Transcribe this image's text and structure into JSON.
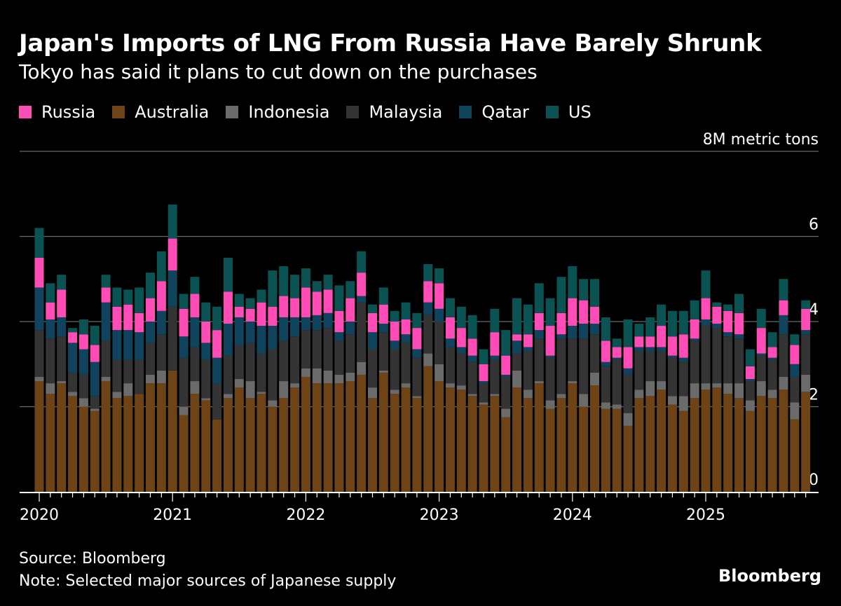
{
  "title": "Japan's Imports of LNG From Russia Have Barely Shrunk",
  "subtitle": "Tokyo has said it plans to cut down on the purchases",
  "legend": [
    {
      "name": "Russia",
      "color": "#ff4db8"
    },
    {
      "name": "Australia",
      "color": "#6e4416"
    },
    {
      "name": "Indonesia",
      "color": "#6b6b6b"
    },
    {
      "name": "Malaysia",
      "color": "#343434"
    },
    {
      "name": "Qatar",
      "color": "#10435c"
    },
    {
      "name": "US",
      "color": "#0b5252"
    }
  ],
  "footer": {
    "source": "Source: Bloomberg",
    "note": "Note: Selected major sources of Japanese supply",
    "brand": "Bloomberg"
  },
  "chart_data": {
    "type": "bar",
    "stacked": true,
    "unit_label": "8M metric tons",
    "ylim": [
      0,
      8
    ],
    "yticks": [
      {
        "value": 0,
        "label": "0"
      },
      {
        "value": 2,
        "label": "2"
      },
      {
        "value": 4,
        "label": "4"
      },
      {
        "value": 6,
        "label": "6"
      },
      {
        "value": 8,
        "label": "8M metric tons"
      }
    ],
    "year_labels": [
      "2020",
      "2021",
      "2022",
      "2023",
      "2024",
      "2025"
    ],
    "start_month": "2020-01",
    "grid": true,
    "legend_position": "top-left",
    "series_order": [
      "Australia",
      "Indonesia",
      "Malaysia",
      "Qatar",
      "Russia",
      "US"
    ],
    "series": [
      {
        "name": "Australia",
        "color": "#6e4416",
        "values": [
          2.6,
          2.3,
          2.55,
          2.25,
          2.0,
          1.9,
          2.6,
          2.2,
          2.25,
          2.3,
          2.55,
          2.55,
          2.85,
          1.8,
          2.3,
          2.15,
          1.7,
          2.2,
          2.45,
          2.2,
          2.3,
          2.0,
          2.2,
          2.45,
          2.7,
          2.55,
          2.55,
          2.55,
          2.6,
          2.75,
          2.2,
          2.8,
          2.3,
          2.45,
          2.2,
          2.95,
          2.6,
          2.45,
          2.4,
          2.25,
          2.05,
          2.25,
          1.75,
          2.45,
          2.2,
          2.55,
          1.95,
          2.2,
          2.55,
          2.0,
          2.5,
          1.95,
          1.95,
          1.55,
          2.2,
          2.25,
          2.4,
          2.05,
          1.9,
          2.2,
          2.4,
          2.45,
          2.3,
          2.2,
          1.9,
          2.25,
          2.2,
          2.4,
          1.7,
          2.35
        ]
      },
      {
        "name": "Indonesia",
        "color": "#6b6b6b",
        "values": [
          0.1,
          0.25,
          0.05,
          0.1,
          0.2,
          0.05,
          0.1,
          0.15,
          0.3,
          0.0,
          0.2,
          0.3,
          0.0,
          0.2,
          0.3,
          0.05,
          0.0,
          0.1,
          0.2,
          0.4,
          0.05,
          0.15,
          0.4,
          0.1,
          0.2,
          0.35,
          0.3,
          0.2,
          0.2,
          0.3,
          0.25,
          0.05,
          0.1,
          0.1,
          0.05,
          0.3,
          0.4,
          0.1,
          0.1,
          0.05,
          0.05,
          0.05,
          0.2,
          0.4,
          0.2,
          0.05,
          0.2,
          0.1,
          0.05,
          0.3,
          0.3,
          0.15,
          0.1,
          0.3,
          0.2,
          0.35,
          0.2,
          0.2,
          0.35,
          0.35,
          0.15,
          0.1,
          0.25,
          0.35,
          0.25,
          0.35,
          0.2,
          0.3,
          0.4,
          0.4
        ]
      },
      {
        "name": "Malaysia",
        "color": "#343434",
        "values": [
          1.1,
          1.05,
          1.05,
          0.45,
          0.55,
          0.3,
          0.85,
          0.75,
          0.55,
          0.8,
          0.75,
          0.85,
          1.5,
          1.15,
          0.8,
          0.9,
          0.85,
          0.9,
          0.8,
          0.9,
          0.9,
          1.2,
          0.95,
          1.1,
          0.9,
          0.9,
          1.0,
          0.8,
          0.9,
          1.4,
          0.9,
          0.9,
          0.95,
          0.95,
          0.9,
          0.9,
          1.0,
          0.85,
          0.75,
          0.75,
          0.45,
          0.8,
          0.75,
          0.4,
          0.9,
          1.0,
          1.0,
          1.3,
          1.0,
          1.3,
          0.9,
          0.85,
          1.05,
          0.9,
          0.9,
          0.7,
          0.7,
          0.9,
          0.8,
          1.0,
          1.35,
          1.3,
          1.1,
          1.05,
          0.45,
          0.6,
          0.7,
          1.0,
          0.6,
          0.95
        ]
      },
      {
        "name": "Qatar",
        "color": "#10435c",
        "values": [
          1.0,
          0.45,
          0.45,
          0.7,
          0.6,
          0.8,
          0.9,
          0.7,
          0.7,
          0.65,
          0.5,
          0.55,
          0.85,
          0.5,
          0.7,
          0.4,
          0.6,
          0.75,
          0.65,
          0.5,
          0.65,
          0.55,
          0.55,
          0.45,
          0.3,
          0.35,
          0.35,
          0.2,
          0.3,
          0.15,
          0.4,
          0.2,
          0.2,
          0.2,
          0.2,
          0.3,
          0.3,
          0.2,
          0.15,
          0.15,
          0.05,
          0.1,
          0.05,
          0.3,
          0.1,
          0.2,
          0.05,
          0.1,
          0.3,
          0.35,
          0.25,
          0.1,
          0.05,
          0.15,
          0.1,
          0.1,
          0.1,
          0.05,
          0.1,
          0.05,
          0.15,
          0.1,
          0.1,
          0.1,
          0.05,
          0.05,
          0.05,
          0.45,
          0.3,
          0.1
        ]
      },
      {
        "name": "Russia",
        "color": "#ff4db8",
        "values": [
          0.7,
          0.4,
          0.65,
          0.25,
          0.35,
          0.4,
          0.35,
          0.55,
          0.6,
          0.45,
          0.55,
          0.7,
          0.75,
          0.65,
          0.55,
          0.5,
          0.65,
          0.75,
          0.25,
          0.3,
          0.55,
          0.45,
          0.5,
          0.45,
          0.7,
          0.55,
          0.55,
          0.5,
          0.55,
          0.55,
          0.45,
          0.45,
          0.45,
          0.35,
          0.5,
          0.5,
          0.6,
          0.5,
          0.45,
          0.4,
          0.4,
          0.55,
          0.45,
          0.15,
          0.3,
          0.4,
          0.7,
          0.5,
          0.65,
          0.55,
          0.4,
          0.5,
          0.25,
          0.5,
          0.25,
          0.25,
          0.5,
          0.45,
          0.55,
          0.45,
          0.5,
          0.4,
          0.5,
          0.5,
          0.3,
          0.6,
          0.25,
          0.35,
          0.45,
          0.5
        ]
      },
      {
        "name": "US",
        "color": "#0b5252",
        "values": [
          0.7,
          0.45,
          0.35,
          0.1,
          0.35,
          0.45,
          0.3,
          0.45,
          0.35,
          0.6,
          0.6,
          0.7,
          0.8,
          0.35,
          0.4,
          0.45,
          0.55,
          0.8,
          0.3,
          0.25,
          0.3,
          0.85,
          0.7,
          0.55,
          0.45,
          0.25,
          0.35,
          0.6,
          0.4,
          0.5,
          0.2,
          0.4,
          0.25,
          0.4,
          0.35,
          0.4,
          0.35,
          0.45,
          0.5,
          0.55,
          0.35,
          0.55,
          0.6,
          0.85,
          0.7,
          0.7,
          0.65,
          0.85,
          0.75,
          0.5,
          0.65,
          0.55,
          0.2,
          0.65,
          0.3,
          0.45,
          0.5,
          0.6,
          0.55,
          0.45,
          0.65,
          0.1,
          0.15,
          0.45,
          0.4,
          0.45,
          0.35,
          0.5,
          0.25,
          0.2
        ]
      }
    ]
  }
}
